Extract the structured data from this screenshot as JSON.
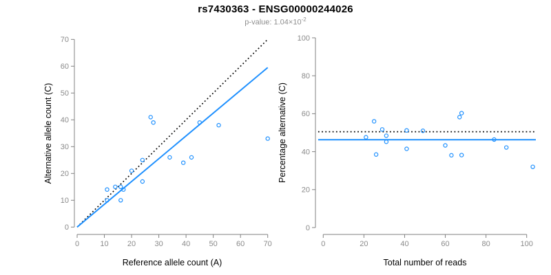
{
  "header": {
    "title": "rs7430363 - ENSG00000244026",
    "subtitle_base": "p-value: 1.04×10",
    "subtitle_exponent": "-2"
  },
  "colors": {
    "accent_blue": "#1E90FF",
    "dotted_black": "#000000",
    "axis_gray": "#808080",
    "tick_label_gray": "#8a8a8a",
    "title_black": "#000000",
    "subtitle_gray": "#8e8e8e"
  },
  "chart_data": [
    {
      "type": "scatter",
      "xlabel": "Reference allele count (A)",
      "ylabel": "Alternative allele count (C)",
      "xlim": [
        0,
        70
      ],
      "ylim": [
        0,
        70
      ],
      "xticks": [
        0,
        10,
        20,
        30,
        40,
        50,
        60,
        70
      ],
      "yticks": [
        0,
        10,
        20,
        30,
        40,
        50,
        60,
        70
      ],
      "grid": false,
      "point_color": "#1E90FF",
      "points": [
        [
          11,
          10
        ],
        [
          11,
          14
        ],
        [
          14,
          15
        ],
        [
          16,
          10
        ],
        [
          16,
          15
        ],
        [
          17,
          14
        ],
        [
          20,
          21
        ],
        [
          24,
          17
        ],
        [
          24,
          25
        ],
        [
          27,
          41
        ],
        [
          28,
          39
        ],
        [
          34,
          26
        ],
        [
          39,
          24
        ],
        [
          42,
          26
        ],
        [
          45,
          39
        ],
        [
          52,
          38
        ],
        [
          70,
          33
        ]
      ],
      "lines": [
        {
          "name": "identity-line",
          "style": "dotted",
          "color": "#000000",
          "x": [
            0,
            70
          ],
          "y": [
            0,
            70
          ]
        },
        {
          "name": "fit-line",
          "style": "solid",
          "color": "#1E90FF",
          "x": [
            0,
            70
          ],
          "y": [
            0,
            59.5
          ]
        }
      ]
    },
    {
      "type": "scatter",
      "xlabel": "Total number of reads",
      "ylabel": "Percentage alternative (C)",
      "xlim": [
        0,
        103
      ],
      "ylim": [
        0,
        100
      ],
      "xticks": [
        0,
        20,
        40,
        60,
        80,
        100
      ],
      "yticks": [
        0,
        20,
        40,
        60,
        80,
        100
      ],
      "grid": false,
      "point_color": "#1E90FF",
      "points": [
        [
          21,
          47.6
        ],
        [
          25,
          56.0
        ],
        [
          26,
          38.5
        ],
        [
          29,
          51.7
        ],
        [
          31,
          45.2
        ],
        [
          31,
          48.4
        ],
        [
          41,
          41.5
        ],
        [
          41,
          51.2
        ],
        [
          49,
          51.0
        ],
        [
          60,
          43.3
        ],
        [
          63,
          38.1
        ],
        [
          67,
          58.2
        ],
        [
          68,
          38.2
        ],
        [
          68,
          60.3
        ],
        [
          84,
          46.4
        ],
        [
          90,
          42.2
        ],
        [
          103,
          32.0
        ]
      ],
      "lines": [
        {
          "name": "expected-50pct-line",
          "style": "dotted",
          "color": "#000000",
          "x": [
            -2.5,
            104.5
          ],
          "y": [
            50.5,
            50.5
          ]
        },
        {
          "name": "mean-pct-line",
          "style": "solid",
          "color": "#1E90FF",
          "x": [
            -2.5,
            104.5
          ],
          "y": [
            46.3,
            46.3
          ]
        }
      ]
    }
  ]
}
